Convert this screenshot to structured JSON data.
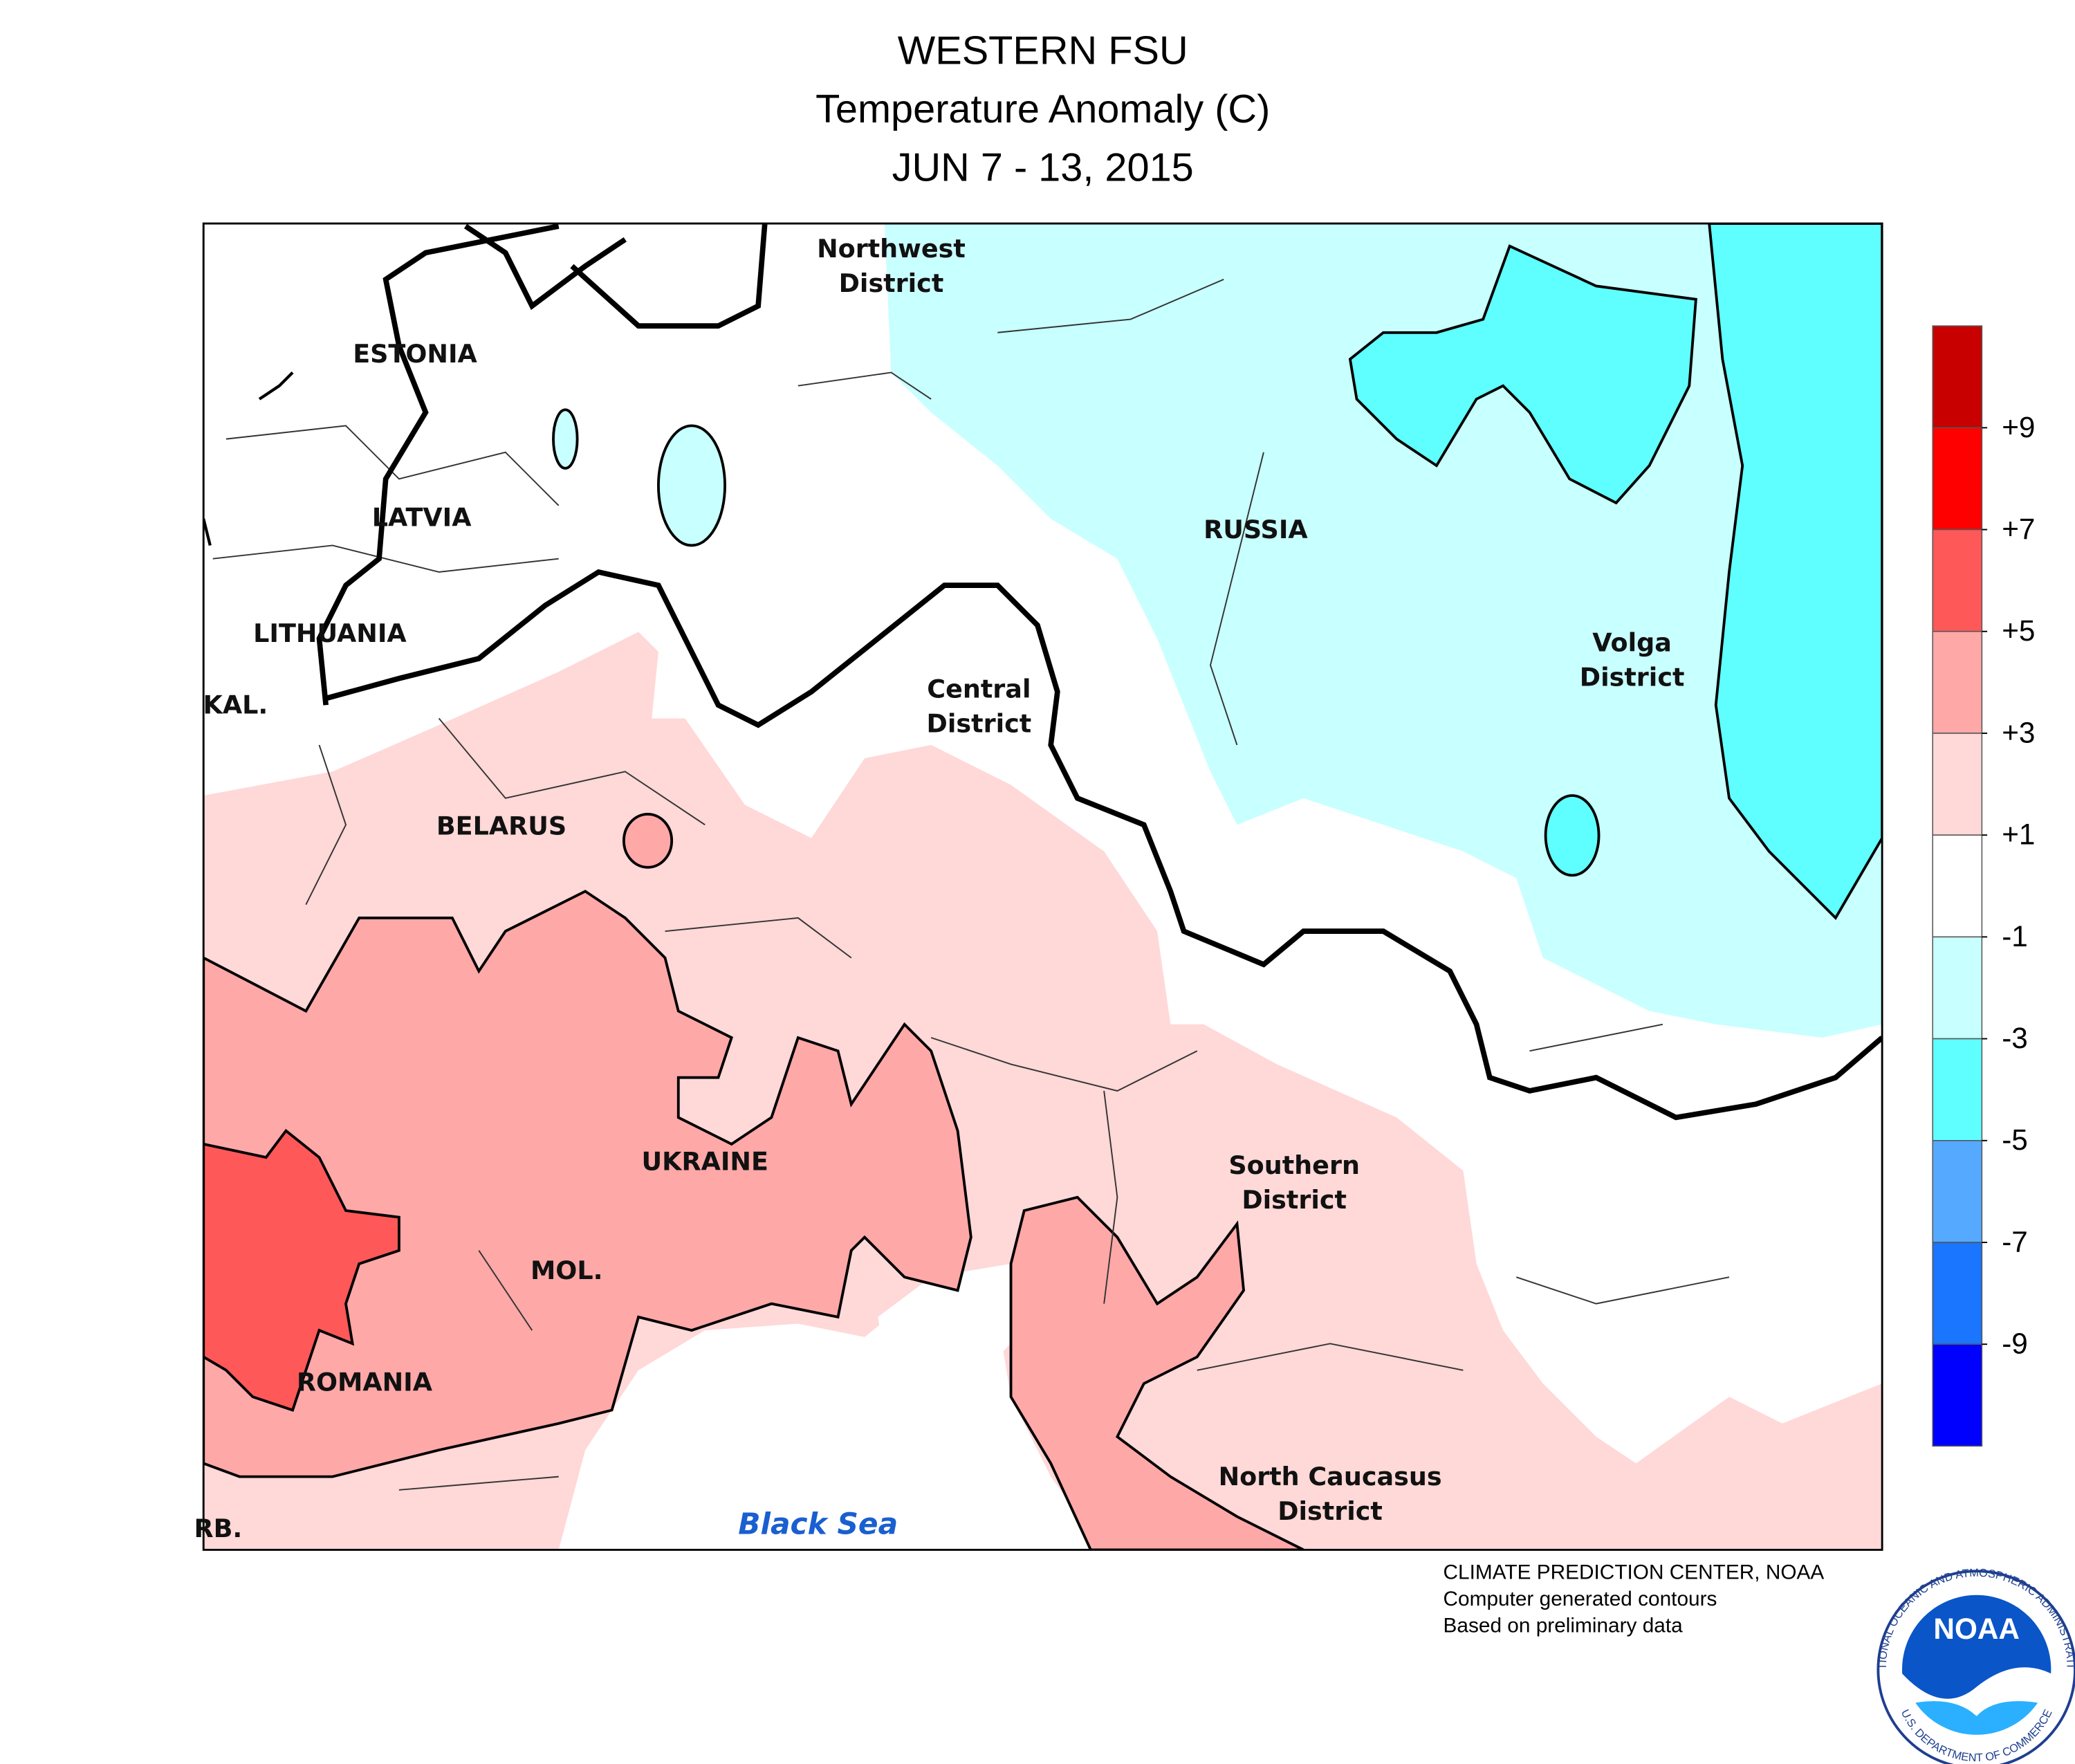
{
  "header": {
    "title": "WESTERN FSU",
    "subtitle": "Temperature Anomaly (C)",
    "period": "JUN 7 - 13, 2015"
  },
  "map": {
    "labels": [
      [
        "Northwest",
        "District"
      ],
      [
        "ESTONIA"
      ],
      [
        "LATVIA"
      ],
      [
        "LITHUANIA"
      ],
      [
        "KAL."
      ],
      [
        "RUSSIA"
      ],
      [
        "Central",
        "District"
      ],
      [
        "Volga",
        "District"
      ],
      [
        "BELARUS"
      ],
      [
        "UKRAINE"
      ],
      [
        "Southern",
        "District"
      ],
      [
        "MOL."
      ],
      [
        "ROMANIA"
      ],
      [
        "North Caucasus",
        "District"
      ],
      [
        "RB."
      ],
      [
        "Black Sea"
      ]
    ]
  },
  "legend": {
    "colors": [
      "#c80000",
      "#ff0000",
      "#ff5858",
      "#ffa8a8",
      "#ffd8d8",
      "#ffffff",
      "#c8ffff",
      "#60ffff",
      "#55aaff",
      "#1a75ff",
      "#0000ff"
    ],
    "ticks": [
      {
        "value": 9,
        "label": "+9"
      },
      {
        "value": 7,
        "label": "+7"
      },
      {
        "value": 5,
        "label": "+5"
      },
      {
        "value": 3,
        "label": "+3"
      },
      {
        "value": 1,
        "label": "+1"
      },
      -1,
      -3,
      -5,
      -7,
      -9
    ]
  },
  "footer": {
    "lines": [
      "CLIMATE PREDICTION CENTER, NOAA",
      "Computer generated contours",
      "Based on preliminary data"
    ]
  },
  "logo": {
    "text": "NOAA",
    "ring_top": "NATIONAL OCEANIC AND ATMOSPHERIC ADMINISTRATION",
    "ring_bottom": "U.S. DEPARTMENT OF COMMERCE"
  }
}
